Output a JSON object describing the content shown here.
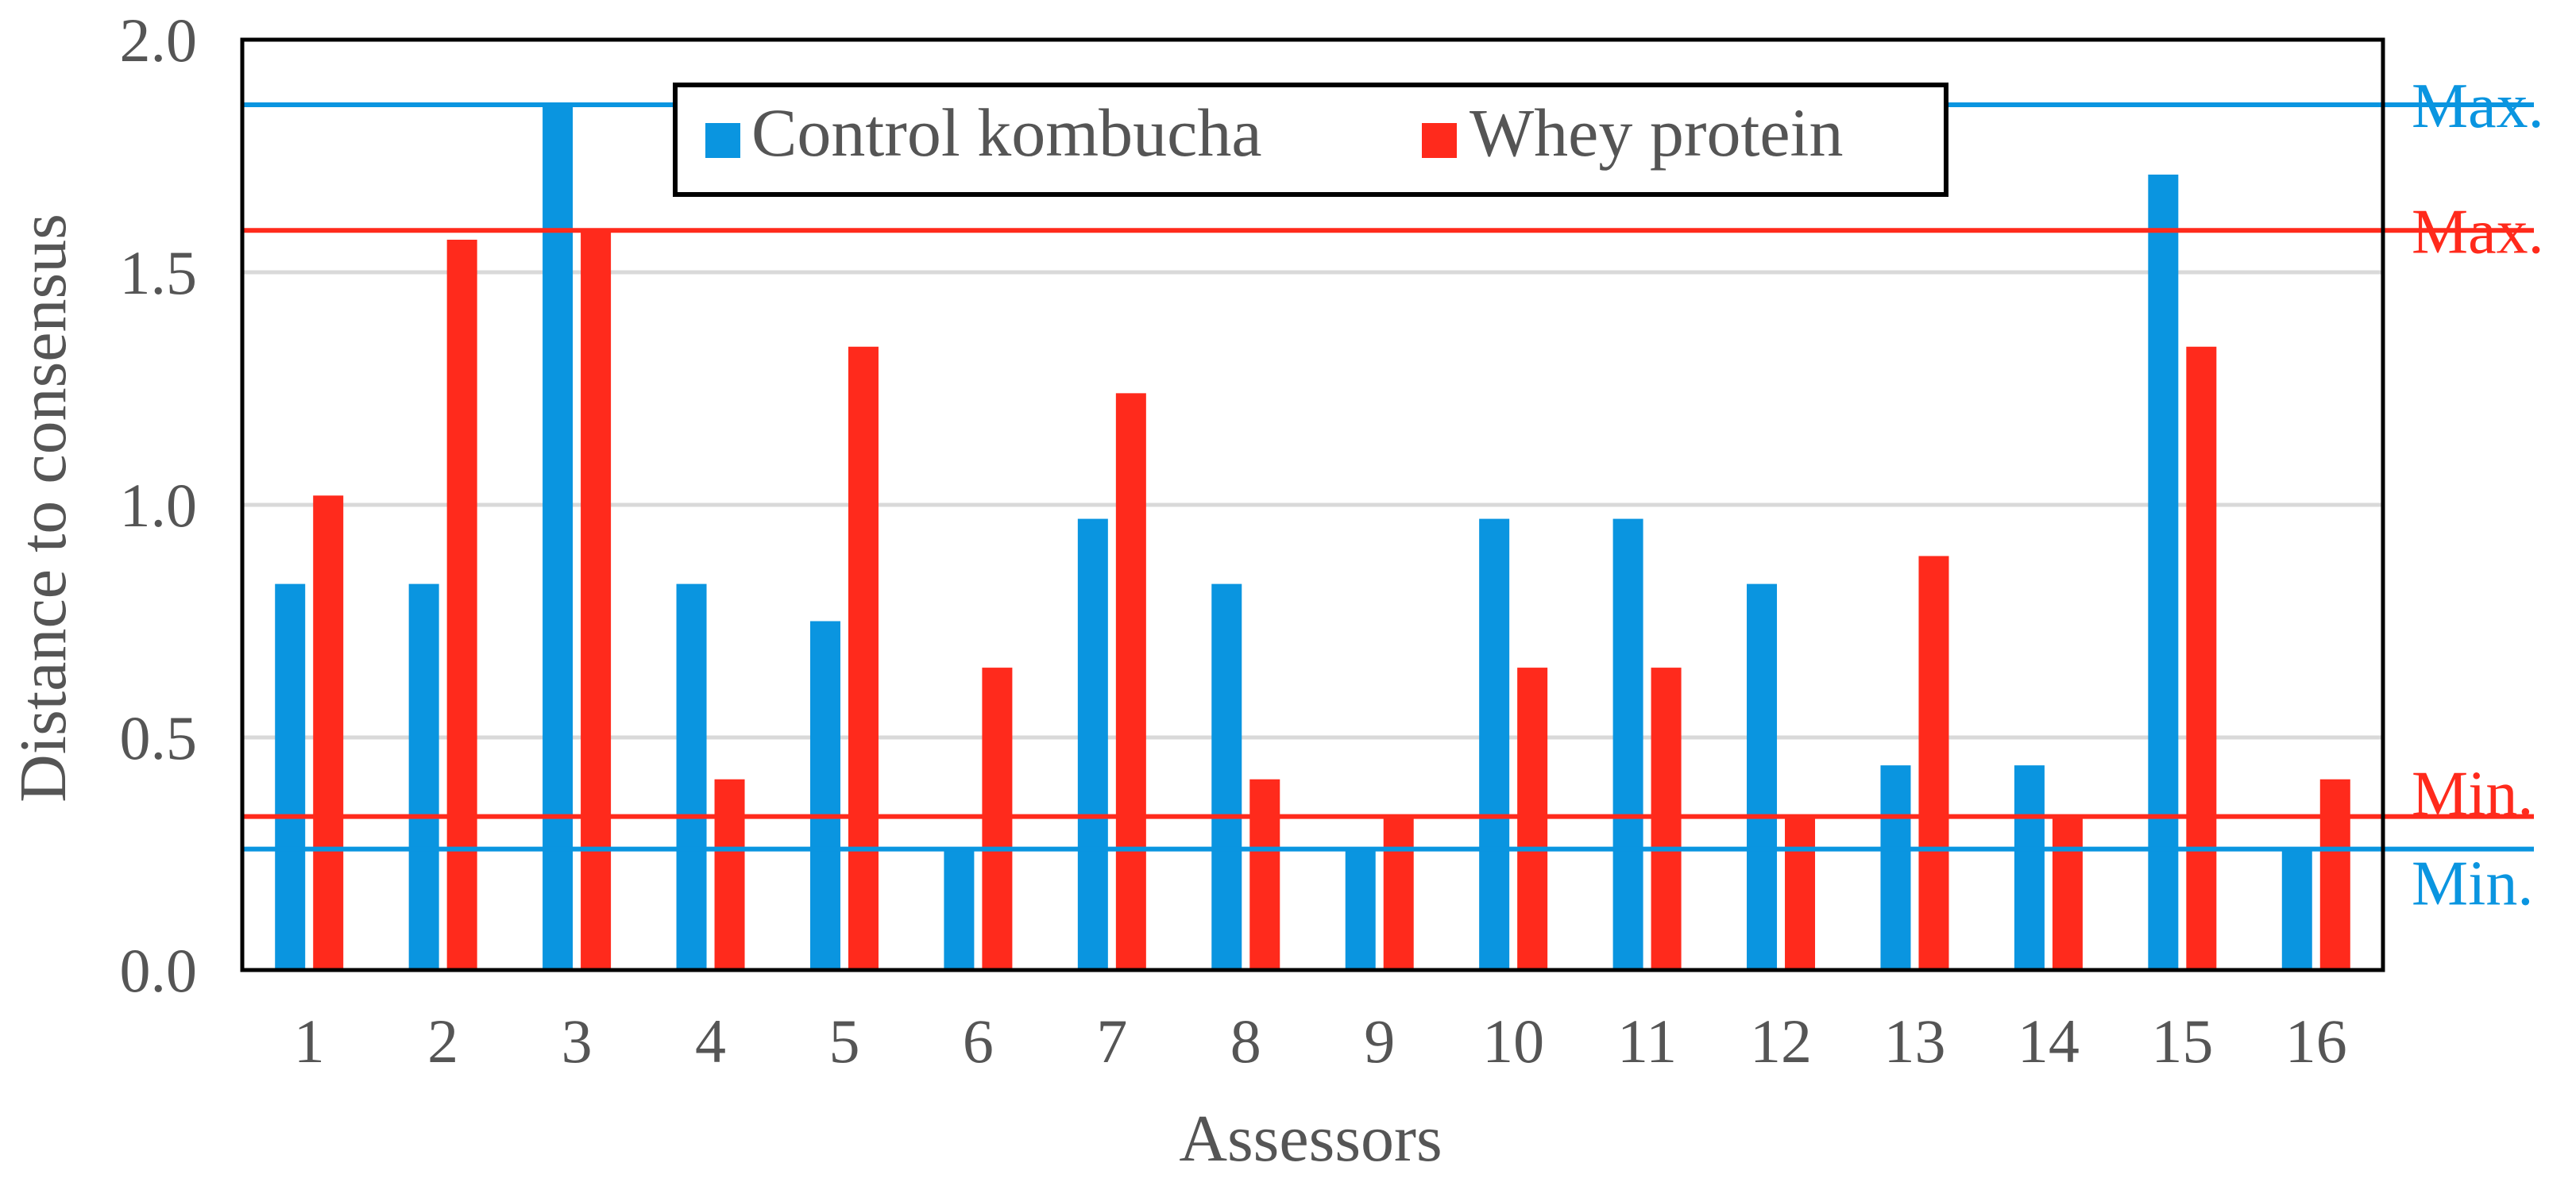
{
  "chart_data": {
    "type": "bar",
    "title": "",
    "xlabel": "Assessors",
    "ylabel": "Distance to consensus",
    "ylim": [
      0,
      2.0
    ],
    "yticks": [
      "0.0",
      "0.5",
      "1.0",
      "1.5",
      "2.0"
    ],
    "yticks_values": [
      0,
      0.5,
      1.0,
      1.5,
      2.0
    ],
    "grid": true,
    "legend_position": "top-center",
    "categories": [
      "1",
      "2",
      "3",
      "4",
      "5",
      "6",
      "7",
      "8",
      "9",
      "10",
      "11",
      "12",
      "13",
      "14",
      "15",
      "16"
    ],
    "series": [
      {
        "name": "Control kombucha",
        "color": "#0A95E0",
        "values": [
          0.83,
          0.83,
          1.86,
          0.83,
          0.75,
          0.26,
          0.97,
          0.83,
          0.26,
          0.97,
          0.97,
          0.83,
          0.44,
          0.44,
          1.71,
          0.26
        ]
      },
      {
        "name": "Whey protein",
        "color": "#FF2A1C",
        "values": [
          1.02,
          1.57,
          1.59,
          0.41,
          1.34,
          0.65,
          1.24,
          0.41,
          0.33,
          0.65,
          0.65,
          0.33,
          0.89,
          0.33,
          1.34,
          0.41
        ]
      }
    ],
    "reference_lines": [
      {
        "label": "Max.",
        "series": "Control kombucha",
        "value": 1.86,
        "color": "#0A95E0"
      },
      {
        "label": "Max.",
        "series": "Whey protein",
        "value": 1.59,
        "color": "#FF2A1C"
      },
      {
        "label": "Min.",
        "series": "Whey protein",
        "value": 0.33,
        "color": "#FF2A1C"
      },
      {
        "label": "Min.",
        "series": "Control kombucha",
        "value": 0.26,
        "color": "#0A95E0"
      }
    ]
  }
}
